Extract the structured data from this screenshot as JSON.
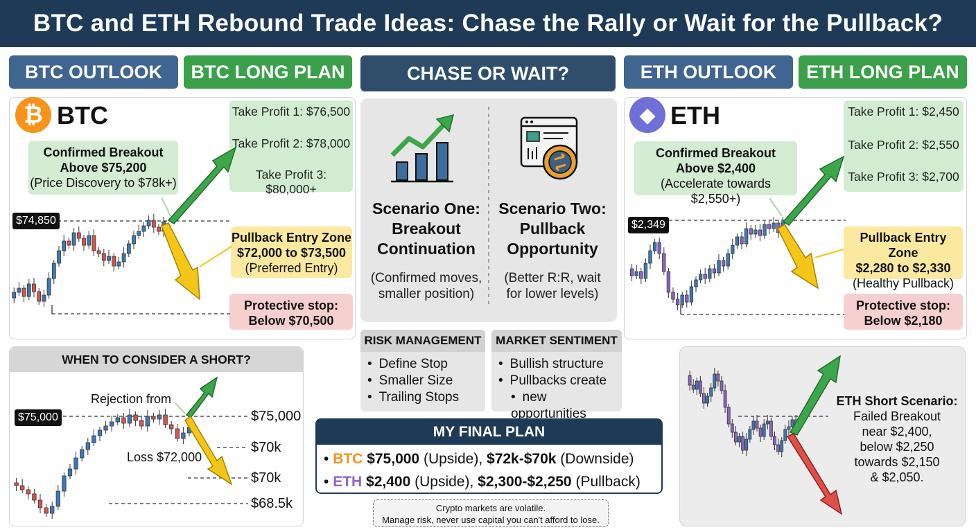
{
  "title": "BTC and ETH Rebound Trade Ideas: Chase the Rally or Wait for the Pullback?",
  "headers": {
    "btc_outlook": "BTC OUTLOOK",
    "btc_long_plan": "BTC LONG PLAN",
    "chase_or_wait": "CHASE OR WAIT?",
    "eth_outlook": "ETH OUTLOOK",
    "eth_long_plan": "ETH LONG PLAN"
  },
  "colors": {
    "navy": "#1f3a56",
    "header_blue": "#3f6590",
    "header_green": "#3aa04a",
    "bull": "#3d7ab5",
    "bear": "#d9534f",
    "eth_purple": "#8e63c7",
    "arrow_green": "#3da54a",
    "arrow_yellow": "#f5c518",
    "arrow_red": "#e0504a",
    "btc_orange": "#f7931a",
    "eth_blue": "#6f6fd8"
  },
  "icons": {
    "btc_logo": "bitcoin-logo-icon",
    "eth_logo": "ethereum-logo-icon",
    "scenario_one": "rising-bar-chart-icon",
    "scenario_two": "dashboard-swap-icon"
  },
  "btc": {
    "label": "BTC",
    "logo_glyph": "₿",
    "breakout": {
      "line1": "Confirmed Breakout",
      "line2": "Above $75,200",
      "line3": "(Price Discovery to $78k+)"
    },
    "current_price": "$74,850",
    "take_profit": [
      "Take Profit 1: $76,500",
      "Take Profit 2: $78,000",
      "Take Profit 3: $80,000+"
    ],
    "pullback": {
      "line1": "Pullback Entry Zone",
      "line2": "$72,000 to $73,500",
      "line3": "(Preferred Entry)"
    },
    "stop": {
      "line1": "Protective stop:",
      "line2": "Below $70,500"
    }
  },
  "eth": {
    "label": "ETH",
    "logo_glyph": "◆",
    "breakout": {
      "line1": "Confirmed Breakout",
      "line2": "Above $2,400",
      "line3": "(Accelerate towards $2,550+)"
    },
    "current_price": "$2,349",
    "take_profit": [
      "Take Profit 1: $2,450",
      "Take Profit 2: $2,550",
      "Take Profit 3: $2,700"
    ],
    "pullback": {
      "line1": "Pullback Entry Zone",
      "line2": "$2,280 to $2,330",
      "line3": "(Healthy Pullback)"
    },
    "stop": {
      "line1": "Protective stop:",
      "line2": "Below $2,180"
    }
  },
  "center": {
    "scenario_one": {
      "title": [
        "Scenario One:",
        "Breakout",
        "Continuation"
      ],
      "sub": [
        "(Confirmed moves,",
        "smaller position)"
      ]
    },
    "scenario_two": {
      "title": [
        "Scenario Two:",
        "Pullback",
        "Opportunity"
      ],
      "sub": [
        "(Better R:R, wait",
        "for lower levels)"
      ]
    },
    "risk": {
      "title": "RISK MANAGEMENT",
      "items": [
        "Define Stop",
        "Smaller Size",
        "Trailing Stops"
      ]
    },
    "sentiment": {
      "title": "MARKET SENTIMENT",
      "items": [
        "Bullish structure",
        "Pullbacks create",
        "new opportunities"
      ]
    },
    "final_plan": {
      "title": "MY FINAL PLAN",
      "btc": {
        "coin": "BTC",
        "up": "$75,000",
        "up_tag": "(Upside),",
        "down": "$72k-$70k",
        "down_tag": "(Downside)"
      },
      "eth": {
        "coin": "ETH",
        "up": "$2,400",
        "up_tag": "(Upside),",
        "down": "$2,300-$2,250",
        "down_tag": "(Pullback)"
      }
    },
    "disclaimer": [
      "Crypto markets are volatile.",
      "Manage risk, never use capital you can't afford to lose."
    ]
  },
  "btc_short": {
    "title": "WHEN TO CONSIDER A SHORT?",
    "price_tag": "$75,000",
    "rejection": "Rejection from",
    "loss": "Loss $72,000",
    "levels": [
      "$75,000",
      "$70k",
      "$70k",
      "$68.5k"
    ]
  },
  "eth_short": {
    "text": [
      "ETH Short Scenario:",
      "Failed Breakout",
      "near $2,400,",
      "below $2,250",
      "towards $2,150",
      "& $2,050."
    ]
  },
  "chart_data": [
    {
      "type": "candlestick",
      "name": "BTC outlook",
      "price_label": "$74,850"
    },
    {
      "type": "candlestick",
      "name": "ETH outlook",
      "price_label": "$2,349"
    },
    {
      "type": "candlestick",
      "name": "BTC short scenario",
      "levels": [
        "$75,000",
        "$70k",
        "$70k",
        "$68.5k"
      ]
    },
    {
      "type": "candlestick",
      "name": "ETH short scenario"
    }
  ]
}
